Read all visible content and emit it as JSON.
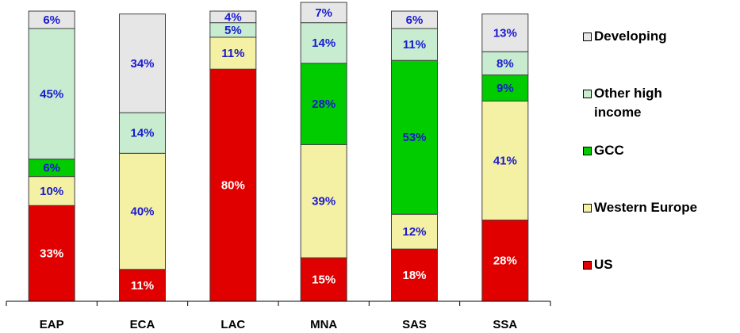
{
  "chart_data": {
    "type": "stacked-bar",
    "categories": [
      "EAP",
      "ECA",
      "LAC",
      "MNA",
      "SAS",
      "SSA"
    ],
    "ylim": [
      0,
      100
    ],
    "series": [
      {
        "name": "US",
        "color": "#e00000",
        "label_color": "#ffffff",
        "values": [
          33,
          11,
          80,
          15,
          18,
          28
        ],
        "value_labels": [
          "33%",
          "11%",
          "80%",
          "15%",
          "18%",
          "28%"
        ]
      },
      {
        "name": "Western Europe",
        "color": "#f4f0a4",
        "label_color": "#1a1ad0",
        "values": [
          10,
          40,
          11,
          39,
          12,
          41
        ],
        "value_labels": [
          "10%",
          "40%",
          "11%",
          "39%",
          "12%",
          "41%"
        ]
      },
      {
        "name": "GCC",
        "color": "#00cc00",
        "label_color": "#1a1ad0",
        "values": [
          6,
          null,
          null,
          28,
          53,
          9
        ],
        "value_labels": [
          "6%",
          null,
          null,
          "28%",
          "53%",
          "9%"
        ]
      },
      {
        "name": "Other high income",
        "color": "#c8ecd0",
        "label_color": "#1a1ad0",
        "values": [
          45,
          14,
          5,
          14,
          11,
          8
        ],
        "value_labels": [
          "45%",
          "14%",
          "5%",
          "14%",
          "11%",
          "8%"
        ]
      },
      {
        "name": "Developing",
        "color": "#e6e6e6",
        "label_color": "#1a1ad0",
        "values": [
          6,
          34,
          4,
          7,
          6,
          13
        ],
        "value_labels": [
          "6%",
          "34%",
          "4%",
          "7%",
          "6%",
          "13%"
        ]
      }
    ]
  }
}
